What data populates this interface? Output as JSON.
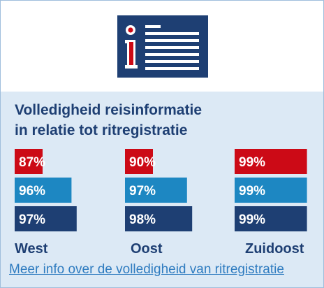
{
  "title_lines": [
    "Volledigheid reisinformatie",
    "in relatie tot ritregistratie"
  ],
  "link_text": "Meer info over de volledigheid van ritregistratie",
  "colors": {
    "navy": "#1e3f73",
    "red": "#cc0a16",
    "blue": "#1d87c2",
    "link": "#2f7cc0",
    "background": "#dce9f5"
  },
  "icon": "info-document-icon",
  "chart_data": {
    "type": "bar",
    "orientation": "horizontal",
    "unit": "%",
    "groups": [
      {
        "name": "West",
        "values": [
          87,
          96,
          97
        ],
        "labels": [
          "87%",
          "96%",
          "97%"
        ]
      },
      {
        "name": "Oost",
        "values": [
          90,
          97,
          98
        ],
        "labels": [
          "90%",
          "97%",
          "98%"
        ]
      },
      {
        "name": "Zuidoost",
        "values": [
          99,
          99,
          99
        ],
        "labels": [
          "99%",
          "99%",
          "99%"
        ]
      }
    ],
    "series_colors": [
      "#cc0a16",
      "#1d87c2",
      "#1e3f73"
    ],
    "xlim": [
      0,
      100
    ]
  }
}
